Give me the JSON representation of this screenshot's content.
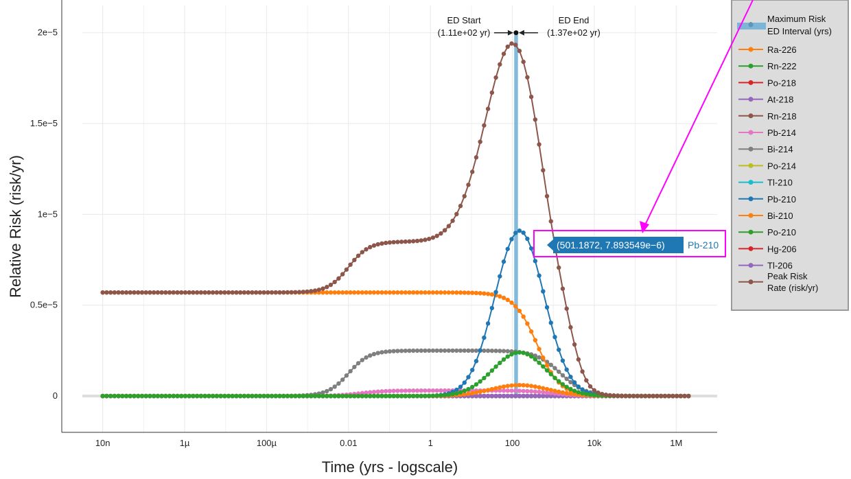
{
  "chart_data": {
    "type": "line",
    "xlabel": "Time (yrs - logscale)",
    "ylabel": "Relative Risk (risk/yr)",
    "x_scale": "log",
    "xlim": [
      1e-09,
      10000000.0
    ],
    "ylim": [
      -2e-06,
      2.15e-05
    ],
    "grid": true,
    "legend_position": "right",
    "x_ticks": [
      {
        "value": 1e-08,
        "label": "10n"
      },
      {
        "value": 1e-06,
        "label": "1µ"
      },
      {
        "value": 0.0001,
        "label": "100µ"
      },
      {
        "value": 0.01,
        "label": "0.01"
      },
      {
        "value": 1,
        "label": "1"
      },
      {
        "value": 100,
        "label": "100"
      },
      {
        "value": 10000,
        "label": "10k"
      },
      {
        "value": 1000000,
        "label": "1M"
      }
    ],
    "y_ticks": [
      {
        "value": 0,
        "label": "0"
      },
      {
        "value": 5e-06,
        "label": "0.5e−5"
      },
      {
        "value": 1e-05,
        "label": "1e−5"
      },
      {
        "value": 1.5e-05,
        "label": "1.5e−5"
      },
      {
        "value": 2e-05,
        "label": "2e−5"
      }
    ],
    "max_risk": {
      "name": "Maximum Risk",
      "x": 123,
      "y": 2e-05,
      "color": "#111111"
    },
    "ed_interval": {
      "name": "ED Interval (yrs)",
      "start": 111,
      "end": 137,
      "color": "#6baed6",
      "start_label": "ED Start",
      "start_value": "(1.11e+02 yr)",
      "end_label": "ED End",
      "end_value": "(1.37e+02 yr)"
    },
    "series": [
      {
        "name": "Ra-226",
        "color": "#ff7f0e",
        "kind": "plateau_decay",
        "level": 5.7e-06,
        "decay_center": 400,
        "decay_width": 1.0
      },
      {
        "name": "Rn-222",
        "color": "#2ca02c",
        "kind": "zero"
      },
      {
        "name": "Po-218",
        "color": "#d62728",
        "kind": "zero"
      },
      {
        "name": "At-218",
        "color": "#9467bd",
        "kind": "zero"
      },
      {
        "name": "Rn-218",
        "color": "#8c564b",
        "kind": "zero"
      },
      {
        "name": "Pb-214",
        "color": "#e377c2",
        "kind": "bump",
        "level": 3e-07,
        "rise_center": 0.02,
        "decay_center": 1000
      },
      {
        "name": "Bi-214",
        "color": "#7f7f7f",
        "kind": "step",
        "level": 2.5e-06,
        "rise_center": 0.01,
        "decay_center": 1500
      },
      {
        "name": "Po-214",
        "color": "#bcbd22",
        "kind": "zero"
      },
      {
        "name": "Tl-210",
        "color": "#17becf",
        "kind": "zero"
      },
      {
        "name": "Pb-210",
        "color": "#1f77b4",
        "kind": "peak",
        "peak_x": 150,
        "peak_y": 9.1e-06,
        "sigma": 0.6
      },
      {
        "name": "Bi-210",
        "color": "#ff7f0e",
        "kind": "peak",
        "peak_x": 150,
        "peak_y": 6e-07,
        "sigma": 0.7
      },
      {
        "name": "Po-210",
        "color": "#2ca02c",
        "kind": "peak",
        "peak_x": 150,
        "peak_y": 2.4e-06,
        "sigma": 0.65
      },
      {
        "name": "Hg-206",
        "color": "#d62728",
        "kind": "zero"
      },
      {
        "name": "Tl-206",
        "color": "#9467bd",
        "kind": "zero"
      },
      {
        "name": "Peak Risk Rate (risk/yr)",
        "color": "#8c564b",
        "kind": "total",
        "peak_x": 123,
        "peak_y": 2e-05
      }
    ],
    "legend_entries": [
      {
        "label": "Maximum Risk",
        "kind": "max"
      },
      {
        "label": "ED Interval (yrs)",
        "kind": "band"
      },
      {
        "label": "Ra-226",
        "color": "#ff7f0e"
      },
      {
        "label": "Rn-222",
        "color": "#2ca02c"
      },
      {
        "label": "Po-218",
        "color": "#d62728"
      },
      {
        "label": "At-218",
        "color": "#9467bd"
      },
      {
        "label": "Rn-218",
        "color": "#8c564b"
      },
      {
        "label": "Pb-214",
        "color": "#e377c2"
      },
      {
        "label": "Bi-214",
        "color": "#7f7f7f"
      },
      {
        "label": "Po-214",
        "color": "#bcbd22"
      },
      {
        "label": "Tl-210",
        "color": "#17becf"
      },
      {
        "label": "Pb-210",
        "color": "#1f77b4"
      },
      {
        "label": "Bi-210",
        "color": "#ff7f0e"
      },
      {
        "label": "Po-210",
        "color": "#2ca02c"
      },
      {
        "label": "Hg-206",
        "color": "#d62728"
      },
      {
        "label": "Tl-206",
        "color": "#9467bd"
      },
      {
        "label": "Peak Risk Rate (risk/yr)",
        "color": "#8c564b",
        "lines": [
          "Peak Risk",
          "Rate (risk/yr)"
        ]
      }
    ],
    "tooltip": {
      "value_text": "(501.1872, 7.893549e−6)",
      "series_text": "Pb-210",
      "bg_color": "#1f77b4",
      "highlight_color": "#ff00ff"
    }
  }
}
